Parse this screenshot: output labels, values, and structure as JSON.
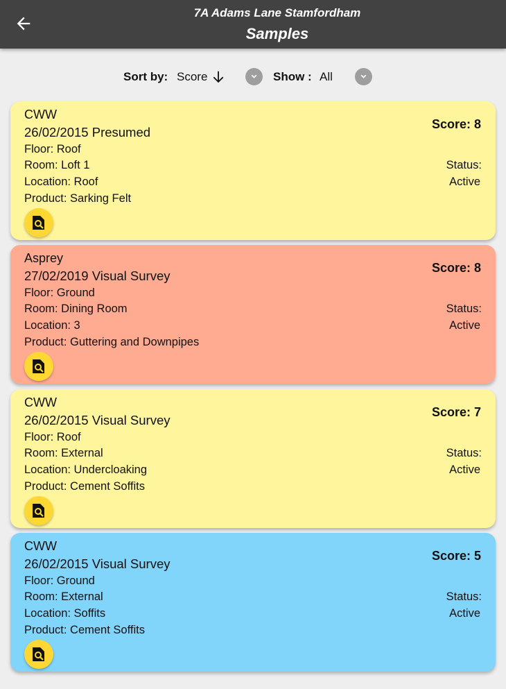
{
  "header": {
    "subtitle": "7A Adams Lane Stamfordham",
    "title": "Samples"
  },
  "sort": {
    "label": "Sort by:",
    "value": "Score",
    "show_label": "Show :",
    "show_value": "All"
  },
  "colors": {
    "yellow": "#fff59d",
    "red": "#ffab91",
    "blue": "#81d4fa",
    "button": "#fdd835"
  },
  "samples": [
    {
      "name": "CWW",
      "date": "26/02/2015 Presumed",
      "floor": "Floor: Roof",
      "room": "Room: Loft 1",
      "location": "Location: Roof",
      "product": "Product: Sarking Felt",
      "score": "Score: 8",
      "status_label": "Status:",
      "status": "Active",
      "color": "#fff59d"
    },
    {
      "name": "Asprey",
      "date": "27/02/2019 Visual Survey",
      "floor": "Floor: Ground",
      "room": "Room: Dining Room",
      "location": "Location: 3",
      "product": "Product: Guttering and Downpipes",
      "score": "Score: 8",
      "status_label": "Status:",
      "status": "Active",
      "color": "#ffab91"
    },
    {
      "name": "CWW",
      "date": "26/02/2015 Visual Survey",
      "floor": "Floor: Roof",
      "room": "Room: External",
      "location": "Location: Undercloaking",
      "product": "Product: Cement Soffits",
      "score": "Score: 7",
      "status_label": "Status:",
      "status": "Active",
      "color": "#fff59d"
    },
    {
      "name": "CWW",
      "date": "26/02/2015 Visual Survey",
      "floor": "Floor: Ground",
      "room": "Room: External",
      "location": "Location: Soffits",
      "product": "Product: Cement Soffits",
      "score": "Score: 5",
      "status_label": "Status:",
      "status": "Active",
      "color": "#81d4fa"
    }
  ]
}
